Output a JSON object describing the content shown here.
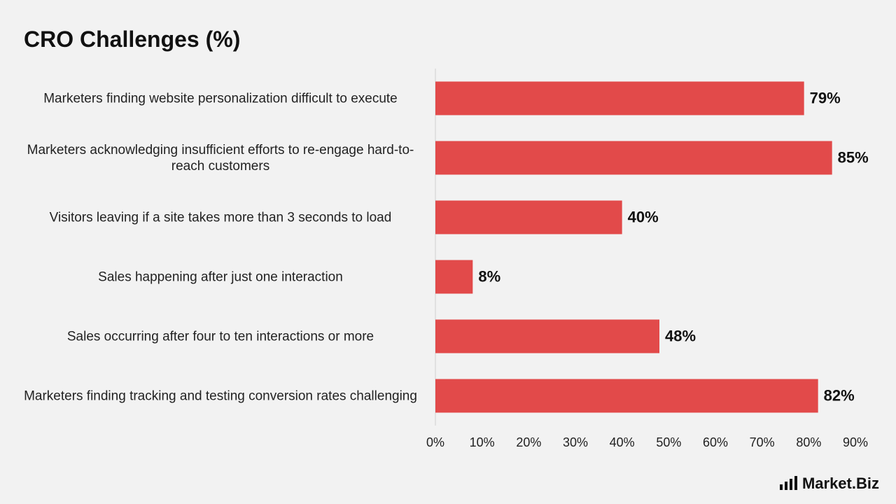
{
  "chart_data": {
    "type": "bar",
    "orientation": "horizontal",
    "title": "CRO Challenges (%)",
    "categories": [
      "Marketers finding website personalization difficult to execute",
      "Marketers acknowledging insufficient efforts to re-engage hard-to-reach customers",
      "Visitors leaving if a site takes more than 3 seconds to load",
      "Sales happening after just one interaction",
      "Sales occurring after four to ten interactions or more",
      "Marketers finding tracking and testing conversion rates challenging"
    ],
    "values": [
      79,
      85,
      40,
      8,
      48,
      82
    ],
    "value_labels": [
      "79%",
      "85%",
      "40%",
      "8%",
      "48%",
      "82%"
    ],
    "color": "#e24a4a",
    "xlim": [
      0,
      90
    ],
    "xticks": [
      {
        "value": 0,
        "label": "0%"
      },
      {
        "value": 10,
        "label": "10%"
      },
      {
        "value": 20,
        "label": "20%"
      },
      {
        "value": 30,
        "label": "30%"
      },
      {
        "value": 40,
        "label": "40%"
      },
      {
        "value": 50,
        "label": "50%"
      },
      {
        "value": 60,
        "label": "60%"
      },
      {
        "value": 70,
        "label": "70%"
      },
      {
        "value": 80,
        "label": "80%"
      },
      {
        "value": 90,
        "label": "90%"
      }
    ],
    "grid": false
  },
  "logo": "Market.Biz"
}
